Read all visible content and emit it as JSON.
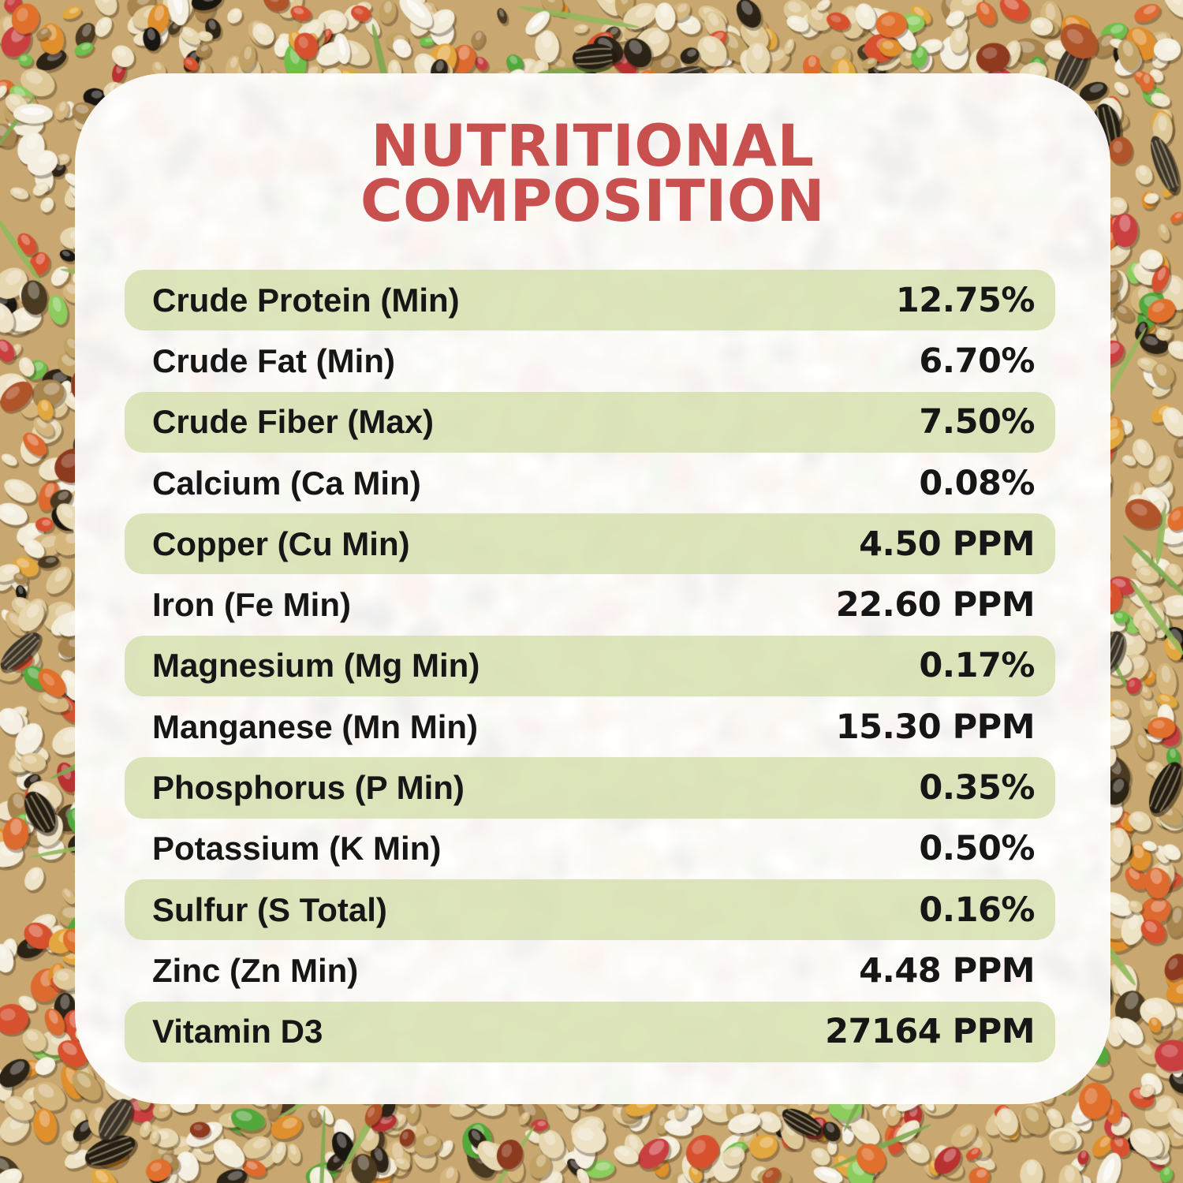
{
  "title": {
    "line1": "NUTRITIONAL",
    "line2": "COMPOSITION"
  },
  "table": {
    "rows": [
      {
        "label": "Crude Protein (Min)",
        "value": "12.75%",
        "shaded": true
      },
      {
        "label": "Crude Fat (Min)",
        "value": "6.70%",
        "shaded": false
      },
      {
        "label": "Crude Fiber (Max)",
        "value": "7.50%",
        "shaded": true
      },
      {
        "label": "Calcium (Ca Min)",
        "value": "0.08%",
        "shaded": false
      },
      {
        "label": "Copper (Cu Min)",
        "value": "4.50 PPM",
        "shaded": true
      },
      {
        "label": "Iron (Fe Min)",
        "value": "22.60 PPM",
        "shaded": false
      },
      {
        "label": "Magnesium (Mg Min)",
        "value": "0.17%",
        "shaded": true
      },
      {
        "label": "Manganese (Mn Min)",
        "value": "15.30 PPM",
        "shaded": false
      },
      {
        "label": "Phosphorus (P Min)",
        "value": "0.35%",
        "shaded": true
      },
      {
        "label": "Potassium (K Min)",
        "value": "0.50%",
        "shaded": false
      },
      {
        "label": "Sulfur (S Total)",
        "value": "0.16%",
        "shaded": true
      },
      {
        "label": "Zinc (Zn Min)",
        "value": "4.48 PPM",
        "shaded": false
      },
      {
        "label": "Vitamin D3",
        "value": "27164 PPM",
        "shaded": true
      }
    ]
  },
  "colors": {
    "title_red": "#c8504f",
    "row_green": "#d7e0b2",
    "text_black": "#161616",
    "card_white": "#ffffff",
    "seed_base_tan": "#c8a870"
  }
}
